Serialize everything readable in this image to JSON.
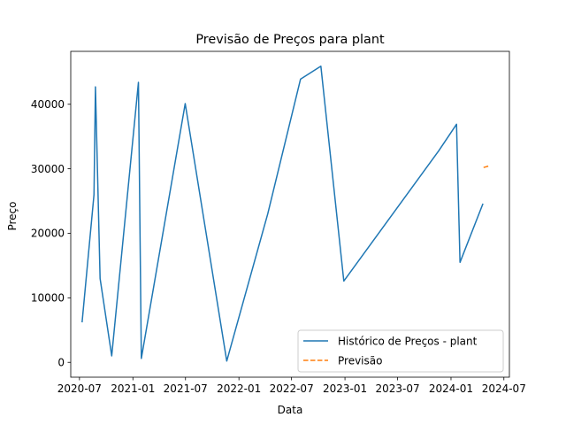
{
  "chart_data": {
    "type": "line",
    "title": "Previsão de Preços para plant",
    "xlabel": "Data",
    "ylabel": "Preço",
    "x_ticks": [
      "2020-07",
      "2021-01",
      "2021-07",
      "2022-01",
      "2022-07",
      "2023-01",
      "2023-07",
      "2024-01",
      "2024-07"
    ],
    "y_ticks": [
      "0",
      "10000",
      "20000",
      "30000",
      "40000"
    ],
    "xlim": [
      "2020-06-01",
      "2024-07-20"
    ],
    "ylim": [
      -2300,
      48200
    ],
    "legend_position": "lower-right",
    "grid": false,
    "series": [
      {
        "name": "Histórico de Preços - plant",
        "color": "#1f77b4",
        "style": "solid",
        "x": [
          "2020-07-10",
          "2020-08-20",
          "2020-08-25",
          "2020-09-10",
          "2020-10-20",
          "2021-01-20",
          "2021-01-30",
          "2021-06-30",
          "2021-11-20",
          "2022-04-10",
          "2022-08-01",
          "2022-10-10",
          "2022-12-28",
          "2023-11-20",
          "2024-01-20",
          "2024-02-01",
          "2024-04-20"
        ],
        "y": [
          6200,
          26000,
          42700,
          13000,
          1000,
          43400,
          600,
          40100,
          200,
          23000,
          43900,
          45900,
          12600,
          32800,
          36900,
          15500,
          24600
        ]
      },
      {
        "name": "Previsão",
        "color": "#ff7f0e",
        "style": "dashed",
        "x": [
          "2024-04-22",
          "2024-05-15"
        ],
        "y": [
          30200,
          30500
        ]
      }
    ]
  }
}
